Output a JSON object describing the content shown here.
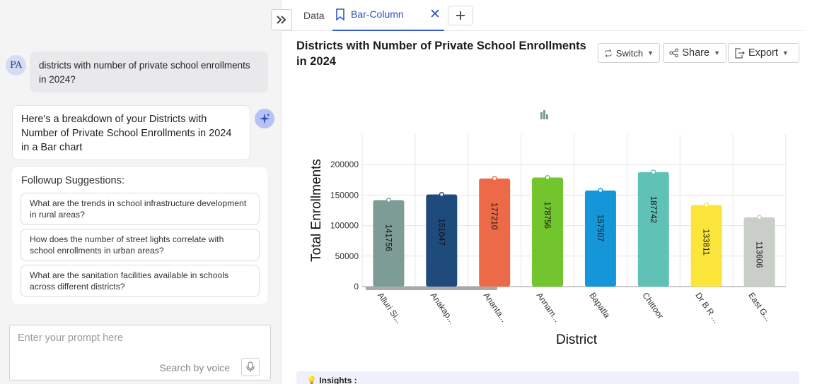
{
  "chat": {
    "user_initials": "PA",
    "user_message": "districts with number of private school enrollments in 2024?",
    "ai_message": "Here's a breakdown of your Districts with Number of Private School Enrollments in 2024 in a Bar chart",
    "followups_title": "Followup Suggestions:",
    "suggestions": [
      "What are the trends in school infrastructure development in rural areas?",
      "How does the number of street lights correlate with school enrollments in urban areas?",
      "What are the sanitation facilities available in schools across different districts?"
    ],
    "prompt_placeholder": "Enter your prompt here",
    "voice_label": "Search by voice"
  },
  "tabs": {
    "data_label": "Data",
    "active_label": "Bar-Column"
  },
  "toolbar": {
    "switch_label": "Switch",
    "share_label": "Share",
    "export_label": "Export"
  },
  "insights_label": "Insights :",
  "colors": {
    "accent": "#2f59c9"
  },
  "chart_data": {
    "type": "bar",
    "title": "Districts with Number of Private School Enrollments in 2024",
    "xlabel": "District",
    "ylabel": "Total Enrollments",
    "categories": [
      "Alluri Si...",
      "Anakap...",
      "Ananta...",
      "Annam...",
      "Bapatla",
      "Chittoor",
      "Dr B R ...",
      "East G..."
    ],
    "values": [
      141756,
      151047,
      177210,
      178756,
      157507,
      187742,
      133811,
      113606
    ],
    "colors": [
      "#7d9c95",
      "#1f4b7c",
      "#ec6a47",
      "#73c52d",
      "#1596d8",
      "#60c2b6",
      "#fbe53b",
      "#c9cec9"
    ],
    "ylim": [
      0,
      250000
    ],
    "yticks": [
      0,
      50000,
      100000,
      150000,
      200000
    ],
    "grid": true,
    "data_labels": true
  }
}
